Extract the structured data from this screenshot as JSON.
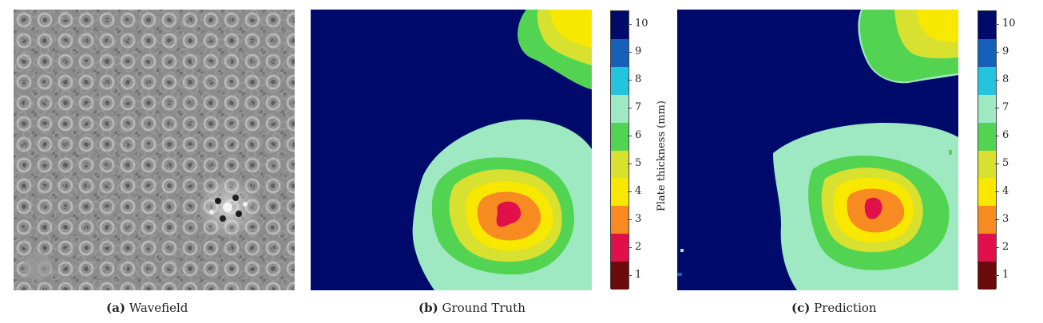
{
  "panels": [
    {
      "label": "(a)",
      "title": "Wavefield"
    },
    {
      "label": "(b)",
      "title": "Ground Truth"
    },
    {
      "label": "(c)",
      "title": "Prediction"
    }
  ],
  "colorbar": {
    "label": "Plate thickness (mm)",
    "ticks": [
      "10",
      "9",
      "8",
      "7",
      "6",
      "5",
      "4",
      "3",
      "2",
      "1"
    ],
    "colors": {
      "10": "#000a6a",
      "9": "#1560b8",
      "8": "#22c4e0",
      "7": "#9ee8c2",
      "6": "#52d452",
      "5": "#d8e030",
      "4": "#f8e800",
      "3": "#f88a22",
      "2": "#e2104a",
      "1": "#6a0a0a"
    }
  }
}
